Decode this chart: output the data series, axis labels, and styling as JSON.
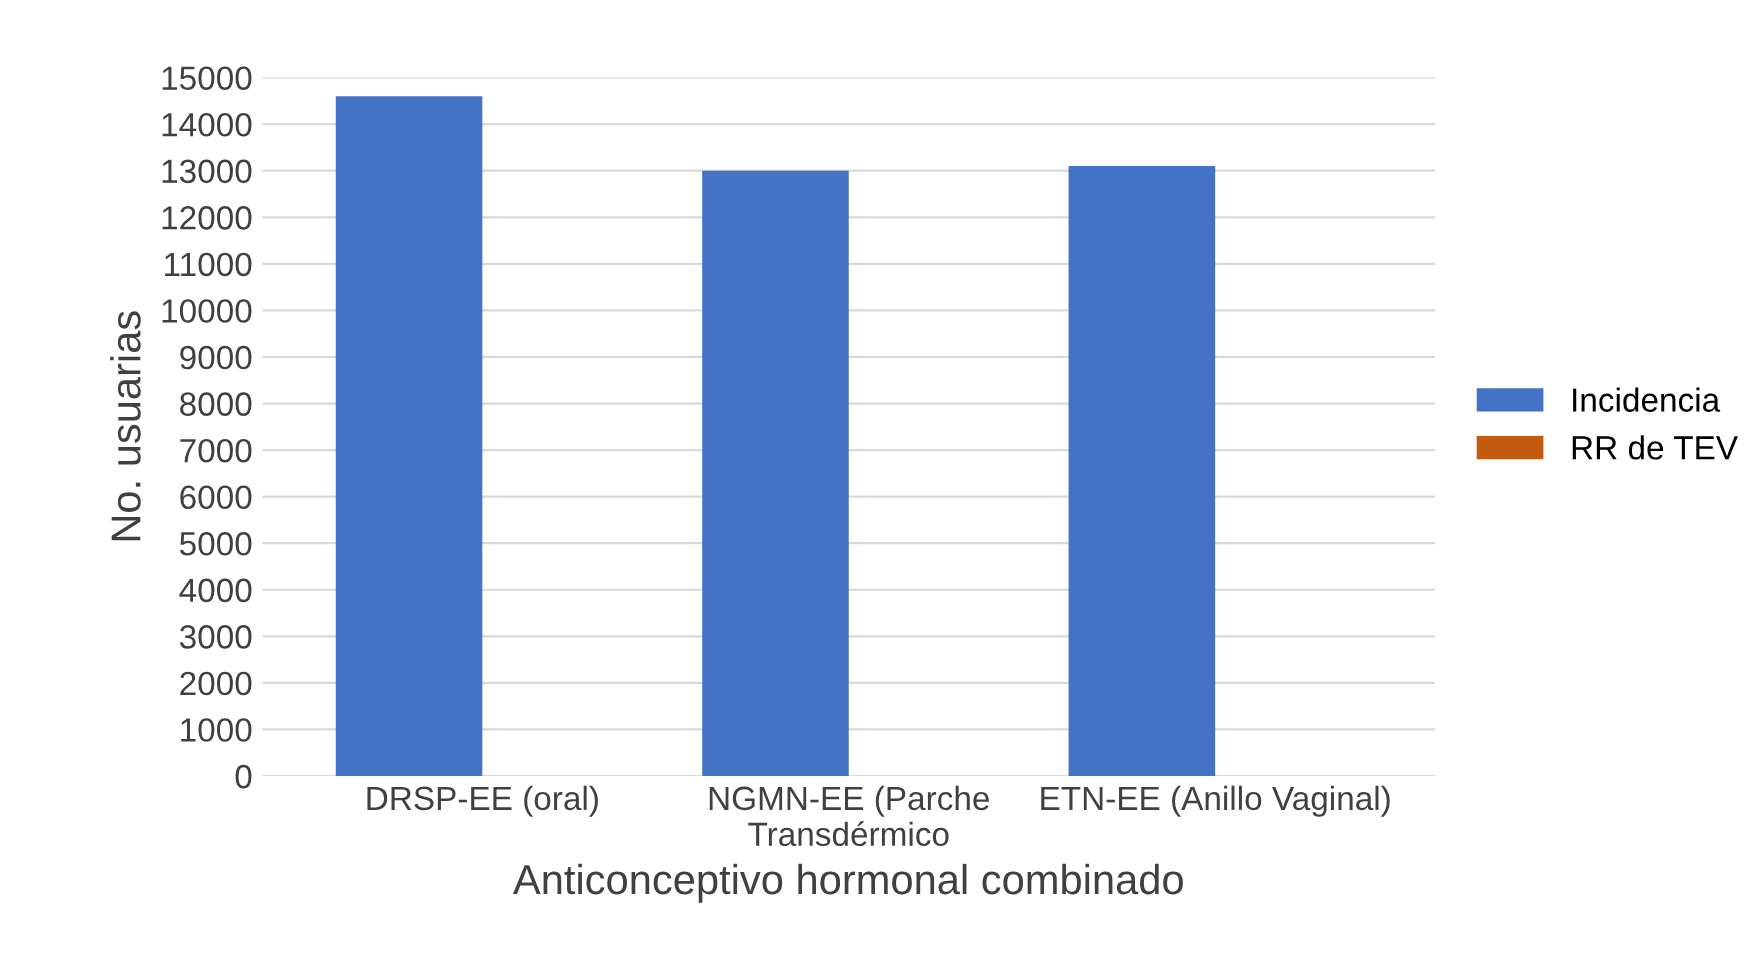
{
  "chart_data": {
    "type": "bar",
    "xlabel": "Anticonceptivo hormonal combinado",
    "ylabel": "No. usuarias",
    "categories": [
      "DRSP-EE (oral)",
      "NGMN-EE (Parche Transdérmico",
      "ETN-EE (Anillo Vaginal)"
    ],
    "series": [
      {
        "name": "Incidencia",
        "color": "#4472c4",
        "values": [
          14600,
          13000,
          13100
        ]
      },
      {
        "name": "RR de TEV",
        "color": "#c55a11",
        "values": [
          0,
          0,
          0
        ]
      }
    ],
    "ylim": [
      0,
      15000
    ],
    "yticks": [
      0,
      1000,
      2000,
      3000,
      4000,
      5000,
      6000,
      7000,
      8000,
      9000,
      10000,
      11000,
      12000,
      13000,
      14000,
      15000
    ],
    "grid": "y",
    "legend": "right"
  }
}
